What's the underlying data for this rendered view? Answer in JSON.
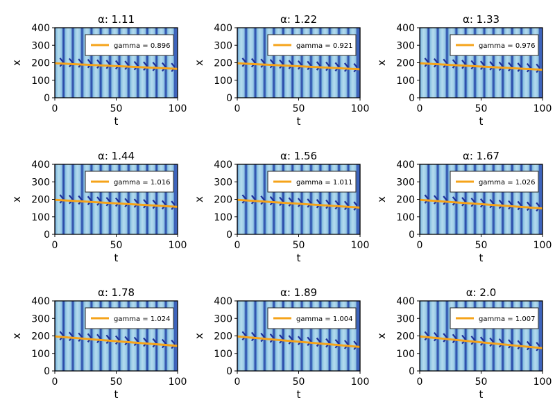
{
  "chart_data": [
    {
      "type": "line",
      "title": "α: 1.11",
      "xlabel": "t",
      "ylabel": "x",
      "xlim": [
        0,
        100
      ],
      "ylim": [
        0,
        400
      ],
      "xticks": [
        "0",
        "50",
        "100"
      ],
      "yticks": [
        "0",
        "100",
        "200",
        "300",
        "400"
      ],
      "series": [
        {
          "name": "gamma = 0.896",
          "x": [
            0,
            100
          ],
          "y": [
            197,
            165
          ]
        }
      ],
      "legend": "top-right"
    },
    {
      "type": "line",
      "title": "α: 1.22",
      "xlabel": "t",
      "ylabel": "x",
      "xlim": [
        0,
        100
      ],
      "ylim": [
        0,
        400
      ],
      "xticks": [
        "0",
        "50",
        "100"
      ],
      "yticks": [
        "0",
        "100",
        "200",
        "300",
        "400"
      ],
      "series": [
        {
          "name": "gamma = 0.921",
          "x": [
            0,
            100
          ],
          "y": [
            197,
            163
          ]
        }
      ],
      "legend": "top-right"
    },
    {
      "type": "line",
      "title": "α: 1.33",
      "xlabel": "t",
      "ylabel": "x",
      "xlim": [
        0,
        100
      ],
      "ylim": [
        0,
        400
      ],
      "xticks": [
        "0",
        "50",
        "100"
      ],
      "yticks": [
        "0",
        "100",
        "200",
        "300",
        "400"
      ],
      "series": [
        {
          "name": "gamma = 0.976",
          "x": [
            0,
            100
          ],
          "y": [
            197,
            160
          ]
        }
      ],
      "legend": "top-right"
    },
    {
      "type": "line",
      "title": "α: 1.44",
      "xlabel": "t",
      "ylabel": "x",
      "xlim": [
        0,
        100
      ],
      "ylim": [
        0,
        400
      ],
      "xticks": [
        "0",
        "50",
        "100"
      ],
      "yticks": [
        "0",
        "100",
        "200",
        "300",
        "400"
      ],
      "series": [
        {
          "name": "gamma = 1.016",
          "x": [
            0,
            100
          ],
          "y": [
            197,
            157
          ]
        }
      ],
      "legend": "top-right"
    },
    {
      "type": "line",
      "title": "α: 1.56",
      "xlabel": "t",
      "ylabel": "x",
      "xlim": [
        0,
        100
      ],
      "ylim": [
        0,
        400
      ],
      "xticks": [
        "0",
        "50",
        "100"
      ],
      "yticks": [
        "0",
        "100",
        "200",
        "300",
        "400"
      ],
      "series": [
        {
          "name": "gamma = 1.011",
          "x": [
            0,
            100
          ],
          "y": [
            197,
            153
          ]
        }
      ],
      "legend": "top-right"
    },
    {
      "type": "line",
      "title": "α: 1.67",
      "xlabel": "t",
      "ylabel": "x",
      "xlim": [
        0,
        100
      ],
      "ylim": [
        0,
        400
      ],
      "xticks": [
        "0",
        "50",
        "100"
      ],
      "yticks": [
        "0",
        "100",
        "200",
        "300",
        "400"
      ],
      "series": [
        {
          "name": "gamma = 1.026",
          "x": [
            0,
            100
          ],
          "y": [
            197,
            148
          ]
        }
      ],
      "legend": "top-right"
    },
    {
      "type": "line",
      "title": "α: 1.78",
      "xlabel": "t",
      "ylabel": "x",
      "xlim": [
        0,
        100
      ],
      "ylim": [
        0,
        400
      ],
      "xticks": [
        "0",
        "50",
        "100"
      ],
      "yticks": [
        "0",
        "100",
        "200",
        "300",
        "400"
      ],
      "series": [
        {
          "name": "gamma = 1.024",
          "x": [
            0,
            100
          ],
          "y": [
            197,
            143
          ]
        }
      ],
      "legend": "top-right"
    },
    {
      "type": "line",
      "title": "α: 1.89",
      "xlabel": "t",
      "ylabel": "x",
      "xlim": [
        0,
        100
      ],
      "ylim": [
        0,
        400
      ],
      "xticks": [
        "0",
        "50",
        "100"
      ],
      "yticks": [
        "0",
        "100",
        "200",
        "300",
        "400"
      ],
      "series": [
        {
          "name": "gamma = 1.004",
          "x": [
            0,
            100
          ],
          "y": [
            197,
            137
          ]
        }
      ],
      "legend": "top-right"
    },
    {
      "type": "line",
      "title": "α: 2.0",
      "xlabel": "t",
      "ylabel": "x",
      "xlim": [
        0,
        100
      ],
      "ylim": [
        0,
        400
      ],
      "xticks": [
        "0",
        "50",
        "100"
      ],
      "yticks": [
        "0",
        "100",
        "200",
        "300",
        "400"
      ],
      "series": [
        {
          "name": "gamma = 1.007",
          "x": [
            0,
            100
          ],
          "y": [
            197,
            130
          ]
        }
      ],
      "legend": "top-right"
    }
  ],
  "colors": {
    "line": "#f5a31a",
    "band_light": "#a9d4ea",
    "band_dark": "#1c2f9a",
    "band_edge": "#3f64bc",
    "axis": "#000000"
  }
}
